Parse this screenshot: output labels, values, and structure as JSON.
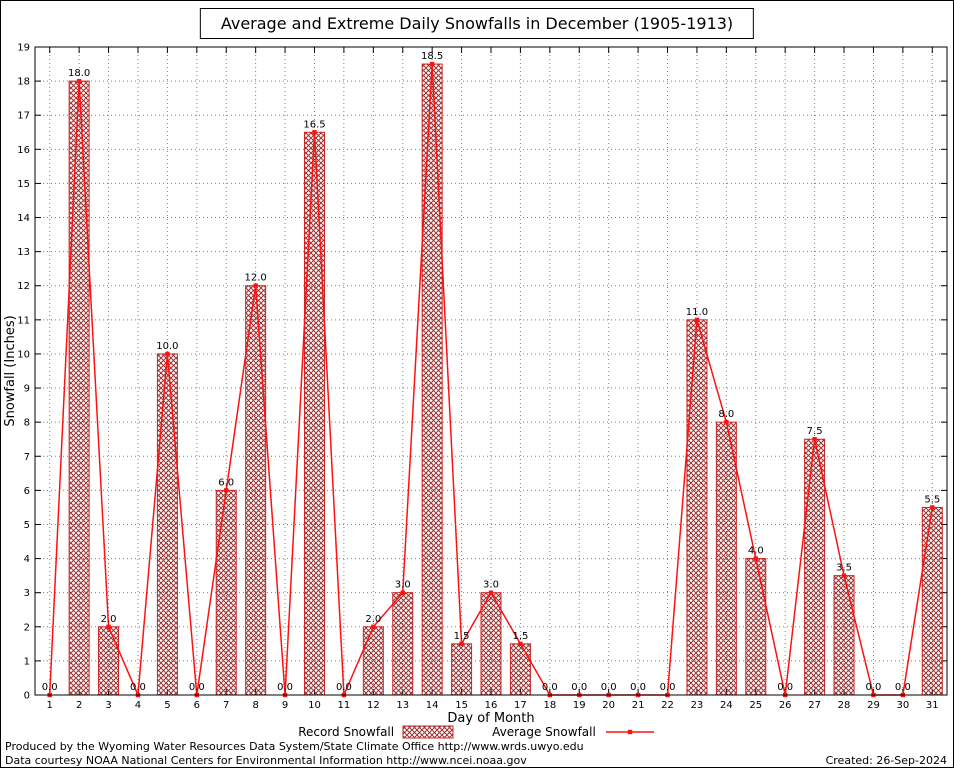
{
  "title": "Average and Extreme Daily Snowfalls in December (1905-1913)",
  "chart_data": {
    "type": "bar",
    "categories": [
      1,
      2,
      3,
      4,
      5,
      6,
      7,
      8,
      9,
      10,
      11,
      12,
      13,
      14,
      15,
      16,
      17,
      18,
      19,
      20,
      21,
      22,
      23,
      24,
      25,
      26,
      27,
      28,
      29,
      30,
      31
    ],
    "series": [
      {
        "name": "Record Snowfall",
        "type": "bar",
        "values": [
          0.0,
          18.0,
          2.0,
          0.0,
          10.0,
          0.0,
          6.0,
          12.0,
          0.0,
          16.5,
          0.0,
          2.0,
          3.0,
          18.5,
          1.5,
          3.0,
          1.5,
          0.0,
          0.0,
          0.0,
          0.0,
          0.0,
          11.0,
          8.0,
          4.0,
          0.0,
          7.5,
          3.5,
          0.0,
          0.0,
          5.5
        ]
      },
      {
        "name": "Average Snowfall",
        "type": "line",
        "values": [
          0.0,
          18.0,
          2.0,
          0.0,
          10.0,
          0.0,
          6.0,
          12.0,
          0.0,
          16.5,
          0.0,
          2.0,
          3.0,
          18.5,
          1.5,
          3.0,
          1.5,
          0.0,
          0.0,
          0.0,
          0.0,
          0.0,
          11.0,
          8.0,
          4.0,
          0.0,
          7.5,
          3.5,
          0.0,
          0.0,
          5.5
        ]
      }
    ],
    "title": "Average and Extreme Daily Snowfalls in December (1905-1913)",
    "xlabel": "Day of Month",
    "ylabel": "Snowfall (Inches)",
    "ylim": [
      0,
      19
    ],
    "ytick_step": 1,
    "grid": true,
    "grid_style": "dotted",
    "value_labels": true,
    "value_label_format": "0.0",
    "legend_position": "bottom"
  },
  "footer": {
    "line1": "Produced by the Wyoming Water Resources Data System/State Climate Office http://www.wrds.uwyo.edu",
    "line2": "Data courtesy NOAA National Centers for Environmental Information http://www.ncei.noaa.gov",
    "created": "Created: 26-Sep-2024"
  },
  "colors": {
    "bar_hatch": "#993333",
    "bar_border": "#cc2222",
    "line": "#ff1111",
    "grid": "#808080",
    "axis": "#000000",
    "text": "#000000"
  }
}
